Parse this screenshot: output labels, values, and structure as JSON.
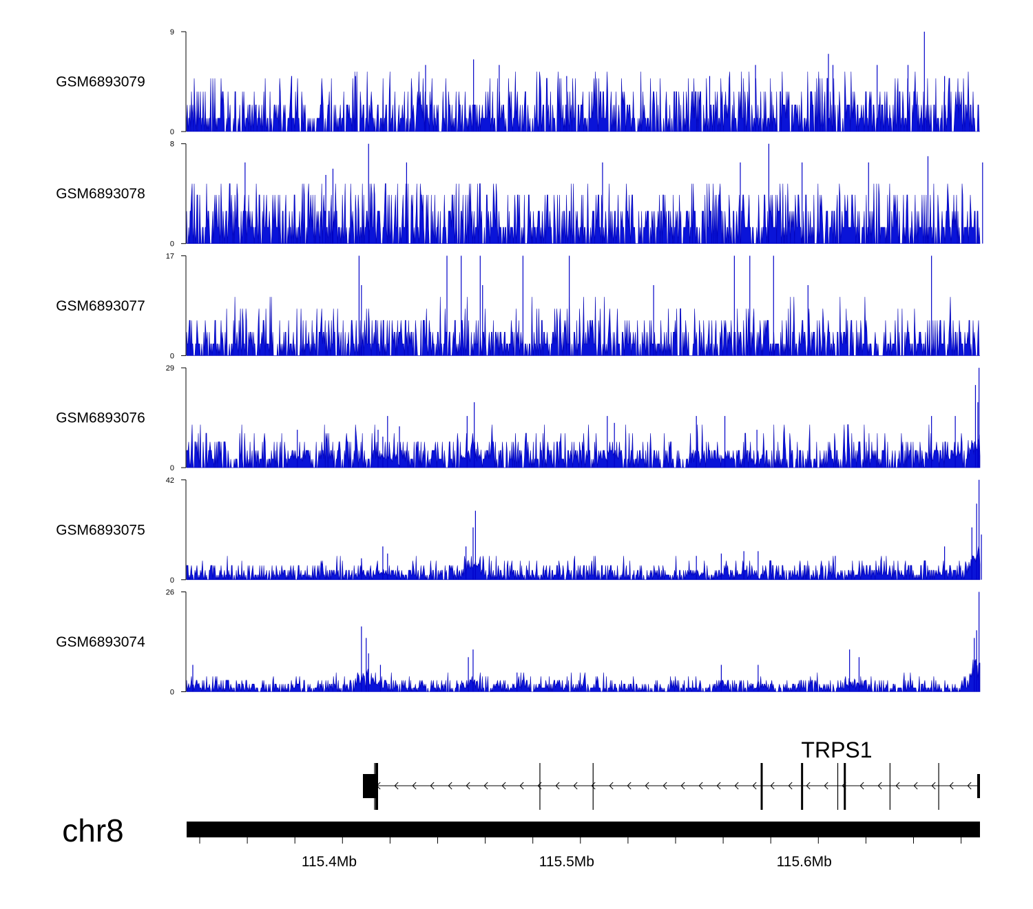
{
  "chart_data": {
    "type": "area",
    "title": "",
    "chromosome": "chr8",
    "x_unit": "Mb",
    "xlim": [
      115.34,
      115.674
    ],
    "x_ticks": [
      {
        "value": 115.4,
        "label": "115.4Mb"
      },
      {
        "value": 115.5,
        "label": "115.5Mb"
      },
      {
        "value": 115.6,
        "label": "115.6Mb"
      }
    ],
    "series": [
      {
        "name": "GSM6893079",
        "ymax_label": "9",
        "ymin_label": "0",
        "ylim": [
          0,
          9
        ],
        "baseline": 1.2,
        "peaks": [
          [
            115.4406,
            6
          ],
          [
            115.4608,
            6.5
          ],
          [
            115.4716,
            6
          ],
          [
            115.5,
            5
          ],
          [
            115.5602,
            5
          ],
          [
            115.5795,
            6
          ],
          [
            115.6121,
            6
          ],
          [
            115.6307,
            6
          ],
          [
            115.6437,
            6
          ],
          [
            115.6506,
            9
          ],
          [
            115.6591,
            5
          ],
          [
            115.6102,
            7
          ],
          [
            115.4111,
            5
          ],
          [
            115.3842,
            5
          ]
        ]
      },
      {
        "name": "GSM6893078",
        "ymax_label": "8",
        "ymin_label": "0",
        "ylim": [
          0,
          8
        ],
        "baseline": 1.3,
        "peaks": [
          [
            115.4166,
            8
          ],
          [
            115.3646,
            6.5
          ],
          [
            115.4016,
            6
          ],
          [
            115.4326,
            6.5
          ],
          [
            115.5151,
            6.5
          ],
          [
            115.5731,
            6.5
          ],
          [
            115.5851,
            8
          ],
          [
            115.5991,
            6.5
          ],
          [
            115.6271,
            6.5
          ],
          [
            115.6521,
            7
          ],
          [
            115.6751,
            6.5
          ],
          [
            115.3986,
            5.5
          ]
        ]
      },
      {
        "name": "GSM6893077",
        "ymax_label": "17",
        "ymin_label": "0",
        "ylim": [
          0,
          17
        ],
        "baseline": 2,
        "peaks": [
          [
            115.4126,
            17
          ],
          [
            115.4496,
            17
          ],
          [
            115.4556,
            17
          ],
          [
            115.4636,
            17
          ],
          [
            115.4816,
            17
          ],
          [
            115.5011,
            17
          ],
          [
            115.5706,
            17
          ],
          [
            115.5771,
            17
          ],
          [
            115.5871,
            17
          ],
          [
            115.6536,
            17
          ],
          [
            115.4136,
            12
          ],
          [
            115.4646,
            12
          ],
          [
            115.5366,
            12
          ],
          [
            115.6016,
            12
          ]
        ]
      },
      {
        "name": "GSM6893076",
        "ymax_label": "29",
        "ymin_label": "0",
        "ylim": [
          0,
          29
        ],
        "baseline": 2.5,
        "peaks": [
          [
            115.6736,
            29
          ],
          [
            115.6721,
            24
          ],
          [
            115.6731,
            19
          ],
          [
            115.4611,
            19
          ],
          [
            115.4581,
            15
          ],
          [
            115.4246,
            15
          ],
          [
            115.3866,
            11
          ],
          [
            115.4206,
            11
          ],
          [
            115.4296,
            12
          ],
          [
            115.5171,
            15
          ],
          [
            115.5201,
            13
          ],
          [
            115.5546,
            15
          ],
          [
            115.5801,
            11
          ],
          [
            115.5666,
            15
          ],
          [
            115.6536,
            15
          ],
          [
            115.6636,
            15
          ],
          [
            115.4226,
            9
          ]
        ]
      },
      {
        "name": "GSM6893075",
        "ymax_label": "42",
        "ymin_label": "0",
        "ylim": [
          0,
          42
        ],
        "baseline": 2,
        "peaks": [
          [
            115.6736,
            42
          ],
          [
            115.6726,
            32
          ],
          [
            115.6746,
            19
          ],
          [
            115.6706,
            22
          ],
          [
            115.4616,
            29
          ],
          [
            115.4606,
            22
          ],
          [
            115.4576,
            14
          ],
          [
            115.4226,
            14
          ],
          [
            115.4246,
            11
          ],
          [
            115.4136,
            9
          ],
          [
            115.5806,
            12
          ],
          [
            115.5746,
            12
          ],
          [
            115.5651,
            11
          ],
          [
            115.6131,
            10
          ],
          [
            115.6591,
            14
          ],
          [
            115.5546,
            10
          ]
        ]
      },
      {
        "name": "GSM6893074",
        "ymax_label": "26",
        "ymin_label": "0",
        "ylim": [
          0,
          26
        ],
        "baseline": 1,
        "peaks": [
          [
            115.6736,
            26
          ],
          [
            115.6726,
            16
          ],
          [
            115.6716,
            14
          ],
          [
            115.4136,
            17
          ],
          [
            115.4156,
            14
          ],
          [
            115.4166,
            10
          ],
          [
            115.4606,
            11
          ],
          [
            115.4586,
            9
          ],
          [
            115.4216,
            7
          ],
          [
            115.5651,
            7
          ],
          [
            115.5806,
            7
          ],
          [
            115.6191,
            11
          ],
          [
            115.6231,
            9
          ],
          [
            115.3426,
            7
          ],
          [
            115.4791,
            5
          ]
        ]
      }
    ],
    "gene_track": {
      "gene_name": "TRPS1",
      "strand": "-",
      "span": [
        115.4166,
        115.6742
      ],
      "exons": [
        115.4191,
        115.4887,
        115.5111,
        115.5821,
        115.5991,
        115.6141,
        115.6171,
        115.6361,
        115.6566
      ]
    }
  }
}
